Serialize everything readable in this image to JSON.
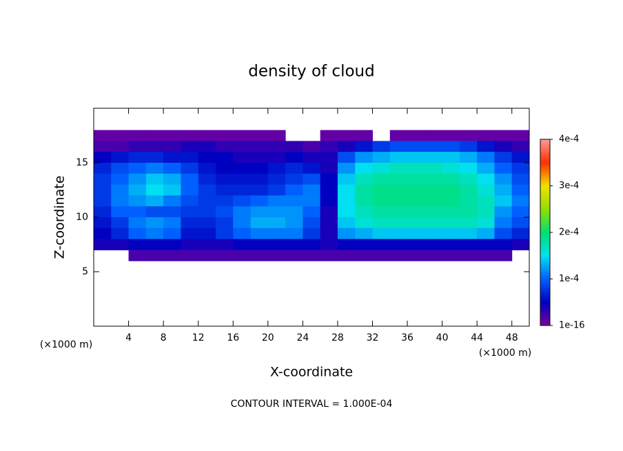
{
  "chart_data": {
    "type": "heatmap",
    "title": "density of cloud",
    "x_label": "X-coordinate",
    "y_label": "Z-coordinate",
    "x_unit": "(×1000 m)",
    "y_unit": "(×1000 m)",
    "footer": "CONTOUR INTERVAL = 1.000E-04",
    "xlim": [
      0,
      50
    ],
    "ylim": [
      0,
      20
    ],
    "xticks": [
      4,
      8,
      12,
      16,
      20,
      24,
      28,
      32,
      36,
      40,
      44,
      48
    ],
    "yticks": [
      5,
      10,
      15
    ],
    "x": [
      1,
      3,
      5,
      7,
      9,
      11,
      13,
      15,
      17,
      19,
      21,
      23,
      25,
      27,
      29,
      31,
      33,
      35,
      37,
      39,
      41,
      43,
      45,
      47,
      49
    ],
    "y": [
      17.5,
      16.5,
      15.5,
      14.5,
      13.5,
      12.5,
      11.5,
      10.5,
      9.5,
      8.5,
      7.5,
      6.5
    ],
    "z": [
      [
        1e-05,
        1e-05,
        1e-05,
        1e-05,
        1e-05,
        1e-05,
        1e-05,
        1e-05,
        1e-05,
        1e-05,
        1e-05,
        null,
        null,
        1e-05,
        1e-05,
        1e-05,
        null,
        1e-05,
        1e-05,
        1e-05,
        1e-05,
        1e-05,
        1e-05,
        1e-05,
        1e-05
      ],
      [
        2e-05,
        2e-05,
        3e-05,
        3e-05,
        3e-05,
        4e-05,
        4e-05,
        3e-05,
        3e-05,
        3e-05,
        3e-05,
        3e-05,
        2e-05,
        3e-05,
        4e-05,
        6e-05,
        8e-05,
        9e-05,
        9e-05,
        9e-05,
        9e-05,
        8e-05,
        6e-05,
        4e-05,
        3e-05
      ],
      [
        5e-05,
        6e-05,
        7e-05,
        7e-05,
        6e-05,
        6e-05,
        5e-05,
        5e-05,
        4e-05,
        4e-05,
        4e-05,
        5e-05,
        4e-05,
        4e-05,
        9e-05,
        0.00012,
        0.00013,
        0.00014,
        0.00014,
        0.00014,
        0.00014,
        0.00013,
        0.00011,
        8e-05,
        6e-05
      ],
      [
        7e-05,
        9e-05,
        0.0001,
        0.00011,
        0.0001,
        8e-05,
        6e-05,
        5e-05,
        5e-05,
        5e-05,
        6e-05,
        7e-05,
        6e-05,
        4e-05,
        0.00012,
        0.00015,
        0.00016,
        0.00017,
        0.00017,
        0.00017,
        0.00016,
        0.00015,
        0.00013,
        0.0001,
        8e-05
      ],
      [
        8e-05,
        0.0001,
        0.00012,
        0.00014,
        0.00013,
        0.0001,
        7e-05,
        6e-05,
        6e-05,
        6e-05,
        7e-05,
        8e-05,
        9e-05,
        5e-05,
        0.00014,
        0.00017,
        0.00018,
        0.00018,
        0.00018,
        0.00018,
        0.00018,
        0.00017,
        0.00015,
        0.00012,
        9e-05
      ],
      [
        8e-05,
        0.00011,
        0.00013,
        0.00015,
        0.00014,
        0.0001,
        8e-05,
        7e-05,
        7e-05,
        7e-05,
        8e-05,
        0.0001,
        0.00011,
        5e-05,
        0.00015,
        0.00018,
        0.00019,
        0.00019,
        0.00019,
        0.00019,
        0.00019,
        0.00018,
        0.00016,
        0.00013,
        0.0001
      ],
      [
        8e-05,
        0.00011,
        0.00012,
        0.00013,
        0.00011,
        9e-05,
        8e-05,
        8e-05,
        9e-05,
        0.0001,
        0.00011,
        0.00011,
        0.00011,
        5e-05,
        0.00015,
        0.00018,
        0.00019,
        0.00019,
        0.00019,
        0.00019,
        0.00019,
        0.00018,
        0.00017,
        0.00014,
        0.00011
      ],
      [
        7e-05,
        0.0001,
        0.0001,
        9e-05,
        9e-05,
        8e-05,
        8e-05,
        9e-05,
        0.00011,
        0.00012,
        0.00012,
        0.00012,
        0.0001,
        4e-05,
        0.00015,
        0.00017,
        0.00018,
        0.00018,
        0.00018,
        0.00018,
        0.00018,
        0.00018,
        0.00017,
        0.00012,
        0.0001
      ],
      [
        6e-05,
        8e-05,
        0.00011,
        0.00012,
        0.00011,
        7e-05,
        7e-05,
        8e-05,
        0.00011,
        0.00013,
        0.00013,
        0.00012,
        9e-05,
        4e-05,
        0.00014,
        0.00016,
        0.00017,
        0.00017,
        0.00017,
        0.00017,
        0.00017,
        0.00017,
        0.00016,
        0.00011,
        9e-05
      ],
      [
        5e-05,
        7e-05,
        0.0001,
        0.00011,
        0.0001,
        6e-05,
        6e-05,
        8e-05,
        0.0001,
        0.00011,
        0.00011,
        0.00011,
        8e-05,
        4e-05,
        0.00012,
        0.00013,
        0.00014,
        0.00014,
        0.00014,
        0.00014,
        0.00014,
        0.00014,
        0.00013,
        9e-05,
        7e-05
      ],
      [
        4e-05,
        4e-05,
        5e-05,
        5e-05,
        5e-05,
        4e-05,
        4e-05,
        4e-05,
        5e-05,
        5e-05,
        5e-05,
        5e-05,
        5e-05,
        4e-05,
        5e-05,
        5e-05,
        5e-05,
        5e-05,
        5e-05,
        5e-05,
        5e-05,
        5e-05,
        5e-05,
        5e-05,
        4e-05
      ],
      [
        null,
        null,
        2e-05,
        2e-05,
        2e-05,
        2e-05,
        2e-05,
        2e-05,
        2e-05,
        2e-05,
        2e-05,
        2e-05,
        2e-05,
        2e-05,
        2e-05,
        2e-05,
        2e-05,
        2e-05,
        2e-05,
        2e-05,
        2e-05,
        2e-05,
        2e-05,
        2e-05,
        null
      ]
    ],
    "clim": [
      1e-16,
      0.0004
    ],
    "cticks": [
      {
        "value": 1e-16,
        "label": "1e-16"
      },
      {
        "value": 0.0001,
        "label": "1e-4"
      },
      {
        "value": 0.0002,
        "label": "2e-4"
      },
      {
        "value": 0.0003,
        "label": "3e-4"
      },
      {
        "value": 0.0004,
        "label": "4e-4"
      }
    ],
    "colors": [
      "#7a00a0",
      "#0000c0",
      "#0060ff",
      "#00e0f0",
      "#00e070",
      "#90e000",
      "#f0e000",
      "#ff3000",
      "#ff9a9a"
    ]
  }
}
